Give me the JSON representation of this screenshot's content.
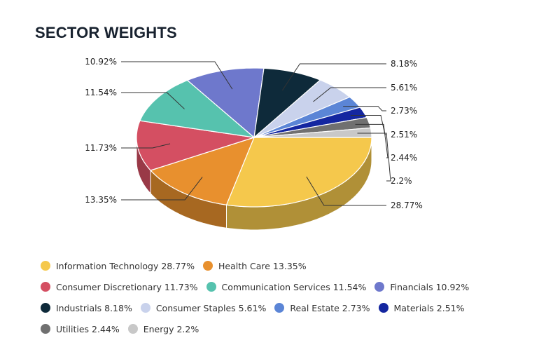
{
  "title": "SECTOR WEIGHTS",
  "chart_data": {
    "type": "pie",
    "style": "3d",
    "legend_position": "bottom",
    "categories": [
      "Information Technology",
      "Health Care",
      "Consumer Discretionary",
      "Communication Services",
      "Financials",
      "Industrials",
      "Consumer Staples",
      "Real Estate",
      "Materials",
      "Utilities",
      "Energy"
    ],
    "values": [
      28.77,
      13.35,
      11.73,
      11.54,
      10.92,
      8.18,
      5.61,
      2.73,
      2.51,
      2.44,
      2.2
    ],
    "data_labels": [
      "28.77%",
      "13.35%",
      "11.73%",
      "11.54%",
      "10.92%",
      "8.18%",
      "5.61%",
      "2.73%",
      "2.51%",
      "2.44%",
      "2.2%"
    ],
    "legend_labels": [
      "Information Technology 28.77%",
      "Health Care 13.35%",
      "Consumer Discretionary 11.73%",
      "Communication Services 11.54%",
      "Financials 10.92%",
      "Industrials 8.18%",
      "Consumer Staples 5.61%",
      "Real Estate 2.73%",
      "Materials 2.51%",
      "Utilities 2.44%",
      "Energy 2.2%"
    ],
    "colors": [
      "#f5c84c",
      "#e8902e",
      "#d44f62",
      "#56c2ae",
      "#6e78cc",
      "#0e2a3a",
      "#c9d2ec",
      "#5b85d6",
      "#1426a0",
      "#707070",
      "#c8c8c8"
    ]
  }
}
